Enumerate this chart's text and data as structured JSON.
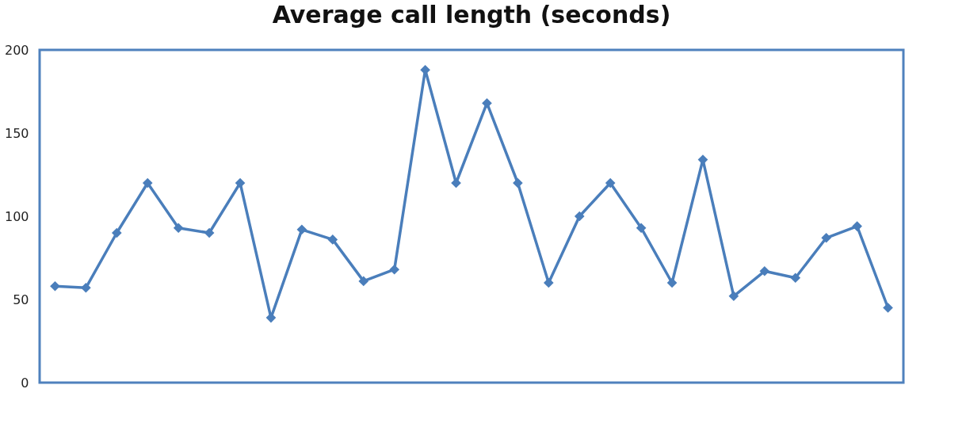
{
  "chart_data": {
    "type": "line",
    "title": "Average call length (seconds)",
    "categories": [
      null,
      null,
      null,
      null,
      null,
      null,
      null,
      null,
      null,
      null,
      null,
      null,
      null,
      null,
      null,
      null,
      null,
      null,
      null,
      null,
      null,
      null,
      null,
      null,
      null,
      null,
      null,
      null
    ],
    "series": [
      {
        "color": "#4a7ebb",
        "values": [
          58,
          57,
          90,
          120,
          93,
          90,
          120,
          39,
          92,
          86,
          61,
          68,
          188,
          120,
          168,
          120,
          60,
          100,
          120,
          93,
          60,
          134,
          52,
          67,
          63,
          87,
          94,
          45
        ]
      }
    ],
    "ylim": [
      0,
      200
    ],
    "yticks": [
      0,
      50,
      100,
      150,
      200
    ],
    "grid": false,
    "tick_labels": "y",
    "marker": "diamond",
    "line_style": "solid"
  }
}
